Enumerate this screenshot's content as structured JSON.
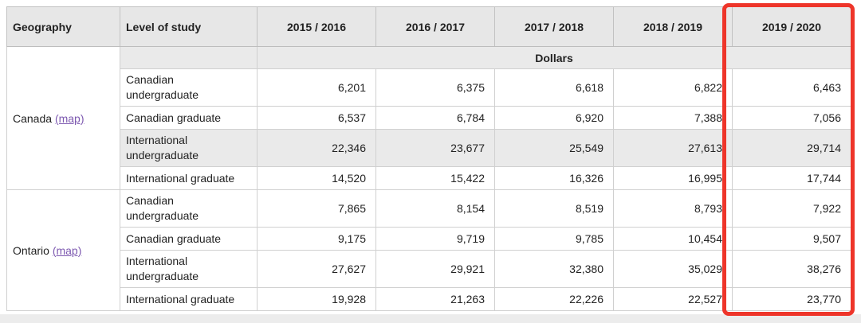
{
  "table": {
    "columns": [
      "Geography",
      "Level of study",
      "2015 / 2016",
      "2016 / 2017",
      "2017 / 2018",
      "2018 / 2019",
      "2019 / 2020"
    ],
    "unit_label": "Dollars",
    "highlighted_column": "2019 / 2020",
    "sections": [
      {
        "geography": "Canada",
        "map_label": "(map)",
        "rows": [
          {
            "level": "Canadian undergraduate",
            "values": [
              "6,201",
              "6,375",
              "6,618",
              "6,822",
              "6,463"
            ],
            "highlighted": false
          },
          {
            "level": "Canadian graduate",
            "values": [
              "6,537",
              "6,784",
              "6,920",
              "7,388",
              "7,056"
            ],
            "highlighted": false
          },
          {
            "level": "International undergraduate",
            "values": [
              "22,346",
              "23,677",
              "25,549",
              "27,613",
              "29,714"
            ],
            "highlighted": true
          },
          {
            "level": "International graduate",
            "values": [
              "14,520",
              "15,422",
              "16,326",
              "16,995",
              "17,744"
            ],
            "highlighted": false
          }
        ]
      },
      {
        "geography": "Ontario",
        "map_label": "(map)",
        "rows": [
          {
            "level": "Canadian undergraduate",
            "values": [
              "7,865",
              "8,154",
              "8,519",
              "8,793",
              "7,922"
            ],
            "highlighted": false
          },
          {
            "level": "Canadian graduate",
            "values": [
              "9,175",
              "9,719",
              "9,785",
              "10,454",
              "9,507"
            ],
            "highlighted": false
          },
          {
            "level": "International undergraduate",
            "values": [
              "27,627",
              "29,921",
              "32,380",
              "35,029",
              "38,276"
            ],
            "highlighted": false
          },
          {
            "level": "International graduate",
            "values": [
              "19,928",
              "21,263",
              "22,226",
              "22,527",
              "23,770"
            ],
            "highlighted": false
          }
        ]
      }
    ]
  },
  "colors": {
    "header_bg": "#e7e7e7",
    "stripe_bg": "#eaeaea",
    "cell_border": "#d0d0d0",
    "header_border": "#bdbdbd",
    "text": "#222222",
    "link_purple": "#7d59b0",
    "highlight_red": "#ee352a",
    "footer_strip_bg": "#ececec"
  }
}
